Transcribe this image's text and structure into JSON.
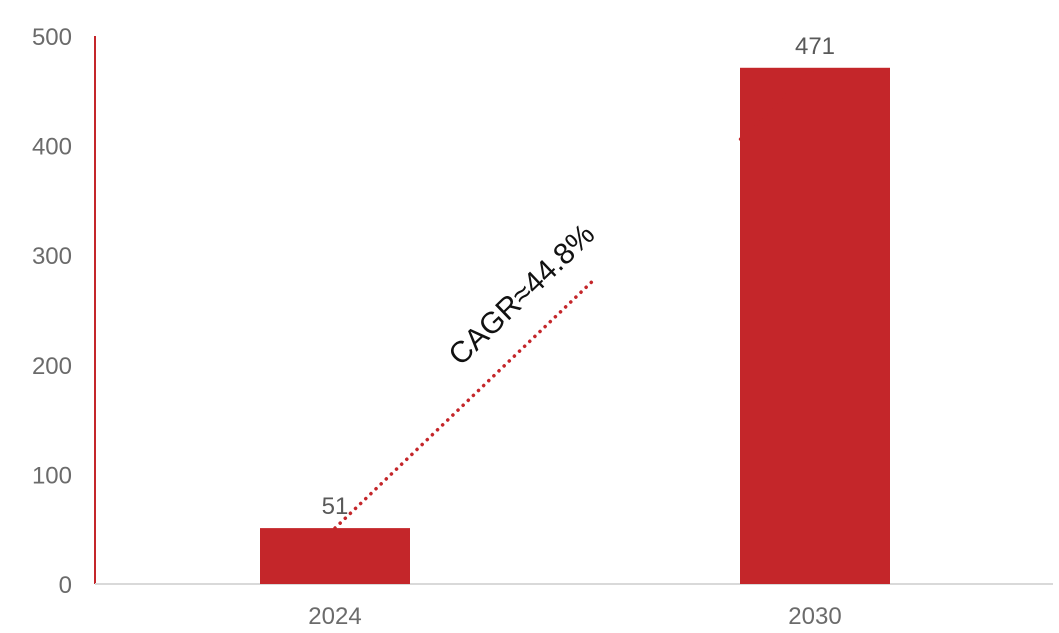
{
  "chart_data": {
    "type": "bar",
    "categories": [
      "2024",
      "2030"
    ],
    "values": [
      51,
      471
    ],
    "data_labels": [
      "51",
      "471"
    ],
    "ylim": [
      0,
      500
    ],
    "yticks": [
      0,
      100,
      200,
      300,
      400,
      500
    ],
    "ytick_labels": [
      "0",
      "100",
      "200",
      "300",
      "400",
      "500"
    ],
    "title": "",
    "xlabel": "",
    "ylabel": "",
    "grid": false,
    "legend": "none",
    "annotation": {
      "text": "CAGR≈44.8%",
      "style": "dotted trend line from 2024 bar top to 2030 bar top"
    },
    "colors": {
      "bar": "#c4262a",
      "y_axis": "#c4262a",
      "x_axis": "#d9d9d9",
      "trend_line": "#c4262a"
    }
  }
}
